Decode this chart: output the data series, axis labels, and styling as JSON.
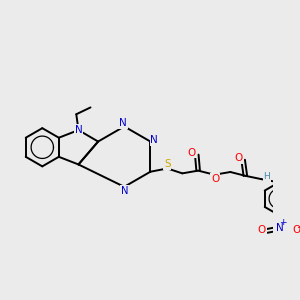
{
  "background_color": "#ebebeb",
  "fig_size": [
    3.0,
    3.0
  ],
  "dpi": 100,
  "atom_colors": {
    "C": "#000000",
    "N": "#0000cc",
    "O": "#ff0000",
    "S": "#ccaa00",
    "H": "#4488aa"
  },
  "bond_color": "#000000",
  "bond_width": 1.4
}
